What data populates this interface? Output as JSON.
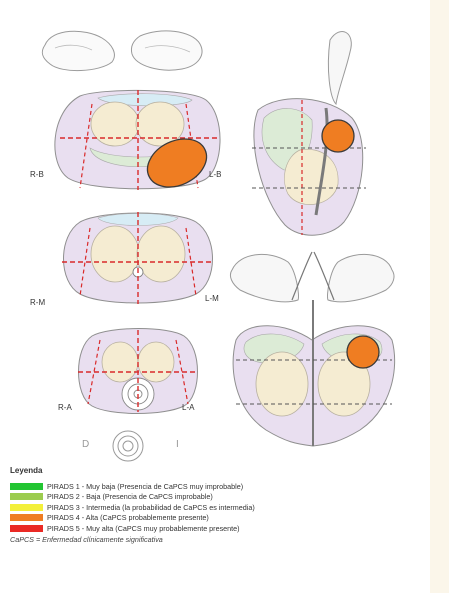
{
  "labels": {
    "rb": "R-B",
    "lb": "L-B",
    "rm": "R-M",
    "lm": "L-M",
    "ra": "R-A",
    "la": "L-A",
    "d": "D",
    "i": "I"
  },
  "legend": {
    "title": "Leyenda",
    "items": [
      {
        "color": "#22c532",
        "text": "PIRADS 1 - Muy baja (Presencia de CaPCS muy improbable)"
      },
      {
        "color": "#9ccc4f",
        "text": "PIRADS 2 - Baja (Presencia de CaPCS improbable)"
      },
      {
        "color": "#f3f03a",
        "text": "PIRADS 3 - Intermedia (la probabilidad de CaPCS es intermedia)"
      },
      {
        "color": "#ef7d22",
        "text": "PIRADS 4 - Alta (CaPCS probablemente presente)"
      },
      {
        "color": "#ea2a25",
        "text": "PIRADS 5 - Muy alta (CaPCS muy probablemente presente)"
      }
    ],
    "footnote": "CaPCS = Enfermedad clínicamente significativa"
  },
  "colors": {
    "lesion": "#ef7d22",
    "peripheral_zone": "#e9dff0",
    "transition_zone": "#f5ecd2",
    "central_zone": "#dcebd6",
    "anterior_stroma": "#d7ecf5",
    "sector_line": "#d92a2a"
  }
}
